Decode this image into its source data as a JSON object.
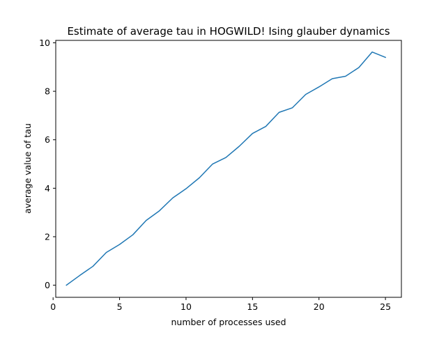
{
  "chart_data": {
    "type": "line",
    "title": "Estimate of average tau in HOGWILD! Ising glauber dynamics",
    "xlabel": "number of processes used",
    "ylabel": "average value of tau",
    "xlim": [
      0.2,
      26.2
    ],
    "ylim": [
      -0.5,
      10.1
    ],
    "xticks": [
      0,
      5,
      10,
      15,
      20,
      25
    ],
    "yticks": [
      0,
      2,
      4,
      6,
      8,
      10
    ],
    "grid": false,
    "series": [
      {
        "color": "#1f77b4",
        "x": [
          1,
          2,
          3,
          4,
          5,
          6,
          7,
          8,
          9,
          10,
          11,
          12,
          13,
          14,
          15,
          16,
          17,
          18,
          19,
          20,
          21,
          22,
          23,
          24,
          25
        ],
        "y": [
          0.0,
          0.4,
          0.78,
          1.35,
          1.68,
          2.08,
          2.67,
          3.07,
          3.6,
          3.98,
          4.43,
          5.0,
          5.27,
          5.73,
          6.26,
          6.55,
          7.13,
          7.32,
          7.87,
          8.18,
          8.52,
          8.62,
          8.98,
          9.62,
          9.4
        ]
      }
    ]
  }
}
